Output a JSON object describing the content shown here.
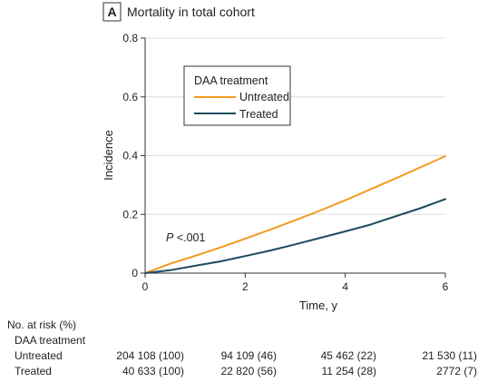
{
  "chart_data": {
    "type": "line",
    "panel_letter": "A",
    "title": "Mortality in total cohort",
    "xlabel": "Time, y",
    "ylabel": "Incidence",
    "xlim": [
      0,
      6
    ],
    "ylim": [
      0,
      0.8
    ],
    "x_ticks": [
      "0",
      "2",
      "4",
      "6"
    ],
    "y_ticks": [
      "0",
      "0.2",
      "0.4",
      "0.6",
      "0.8"
    ],
    "grid": "horizontal",
    "annotation_p_label": "P",
    "annotation_p_value": " <.001",
    "legend": {
      "title": "DAA treatment",
      "placement": "top-left"
    },
    "colors": {
      "untreated": "#f29a1f",
      "treated": "#1f4a5e",
      "grid": "#dddddd",
      "axis": "#333333"
    },
    "series": [
      {
        "name": "Untreated",
        "x": [
          0,
          0.5,
          1,
          1.5,
          2,
          2.5,
          3,
          3.5,
          4,
          4.5,
          5,
          5.5,
          6
        ],
        "y": [
          0,
          0.032,
          0.059,
          0.087,
          0.117,
          0.148,
          0.18,
          0.213,
          0.248,
          0.285,
          0.322,
          0.36,
          0.398
        ]
      },
      {
        "name": "Treated",
        "x": [
          0,
          0.5,
          1,
          1.5,
          2,
          2.5,
          3,
          3.5,
          4,
          4.5,
          5,
          5.5,
          6
        ],
        "y": [
          0,
          0.01,
          0.025,
          0.04,
          0.058,
          0.077,
          0.098,
          0.12,
          0.142,
          0.165,
          0.193,
          0.221,
          0.252
        ]
      }
    ]
  },
  "risk_table": {
    "title": "No. at risk (%)",
    "group_label": "DAA treatment",
    "rows": [
      {
        "label": "Untreated",
        "values": [
          "204 108 (100)",
          "94 109 (46)",
          "45 462 (22)",
          "21 530 (11)"
        ]
      },
      {
        "label": "Treated",
        "values": [
          "40 633 (100)",
          "22 820 (56)",
          "11 254 (28)",
          "2772 (7)"
        ]
      }
    ]
  }
}
